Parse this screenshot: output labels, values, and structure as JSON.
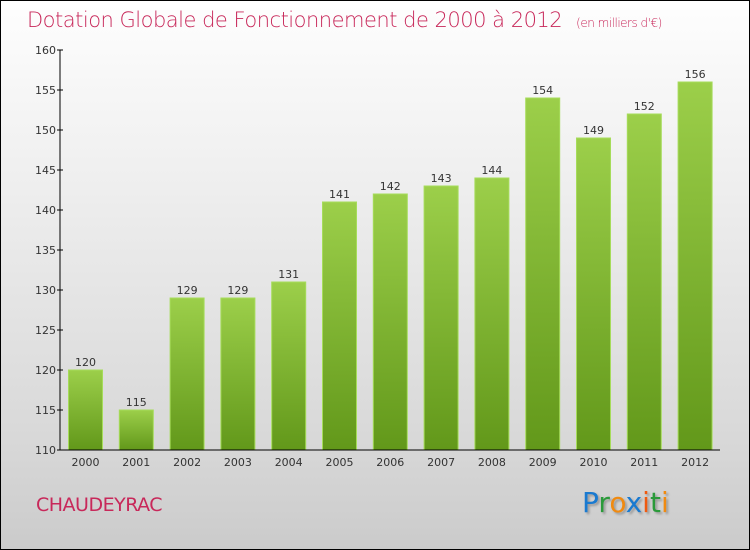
{
  "chart_data": {
    "type": "bar",
    "title": "Dotation Globale de Fonctionnement de 2000 à 2012",
    "subtitle": "(en milliers d'€)",
    "categories": [
      "2000",
      "2001",
      "2002",
      "2003",
      "2004",
      "2005",
      "2006",
      "2007",
      "2008",
      "2009",
      "2010",
      "2011",
      "2012"
    ],
    "values": [
      120,
      115,
      129,
      129,
      131,
      141,
      142,
      143,
      144,
      154,
      149,
      152,
      156
    ],
    "yticks": [
      110,
      115,
      120,
      125,
      130,
      135,
      140,
      145,
      150,
      155,
      160
    ],
    "ylim": [
      110,
      160
    ],
    "xlabel": "",
    "ylabel": "",
    "bar_color_top": "#9ccf4a",
    "bar_color_bottom": "#62981a"
  },
  "city": "CHAUDEYRAC",
  "logo": {
    "text": "Proxiti",
    "letters": [
      {
        "c": "P",
        "color": "#1a7ad0"
      },
      {
        "c": "r",
        "color": "#2a9a3a"
      },
      {
        "c": "o",
        "color": "#f08a10"
      },
      {
        "c": "x",
        "color": "#1a7ad0"
      },
      {
        "c": "i",
        "color": "#f05a10"
      },
      {
        "c": "t",
        "color": "#2a9a3a"
      },
      {
        "c": "i",
        "color": "#f08a10"
      }
    ]
  }
}
